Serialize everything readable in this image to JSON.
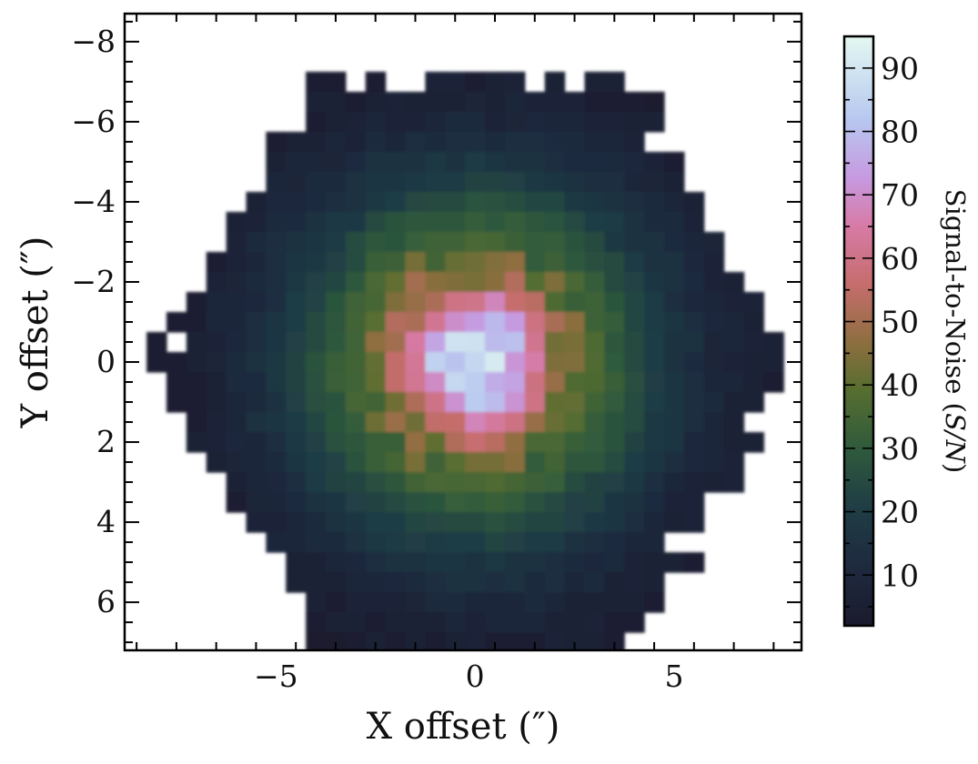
{
  "chart_data": {
    "type": "heatmap",
    "xlabel": "X offset (″)",
    "ylabel": "Y offset (″)",
    "xlim": [
      -8.8,
      8.2
    ],
    "ylim": [
      7.2,
      -8.7
    ],
    "y_inverted": true,
    "x_ticks": [
      -5,
      0,
      5
    ],
    "x_tick_labels": [
      "−5",
      "0",
      "5"
    ],
    "y_ticks": [
      -8,
      -6,
      -4,
      -2,
      0,
      2,
      4,
      6
    ],
    "y_tick_labels": [
      "−8",
      "−6",
      "−4",
      "−2",
      "0",
      "2",
      "4",
      "6"
    ],
    "spaxel_size_arcsec": 1.0,
    "field_radius_arcsec": 8.0,
    "center": [
      0.0,
      0.0
    ],
    "peak_sn": 94,
    "min_sn": 2,
    "sn_profile_radius_arcsec": [
      0,
      1,
      2,
      3,
      4,
      5,
      6,
      7,
      8
    ],
    "sn_profile_values": [
      94,
      78,
      50,
      36,
      26,
      17,
      10,
      6,
      4
    ],
    "grid": false,
    "colorbar": {
      "label": "Signal-to-Noise (S/N)",
      "label_text": "Signal-to-Noise (",
      "label_italic": "S/N",
      "label_close": ")",
      "vmin": 2,
      "vmax": 95,
      "ticks": [
        10,
        20,
        30,
        40,
        50,
        60,
        70,
        80,
        90
      ],
      "tick_labels": [
        "10",
        "20",
        "30",
        "40",
        "50",
        "60",
        "70",
        "80",
        "90"
      ],
      "position": "right",
      "colormap": "cubehelix-like",
      "colormap_stops": [
        {
          "v": 0.0,
          "color": "#1b1a2e"
        },
        {
          "v": 0.1,
          "color": "#1e2a3e"
        },
        {
          "v": 0.2,
          "color": "#1f3d45"
        },
        {
          "v": 0.3,
          "color": "#2f5a3c"
        },
        {
          "v": 0.4,
          "color": "#566e30"
        },
        {
          "v": 0.48,
          "color": "#8d6e3f"
        },
        {
          "v": 0.58,
          "color": "#c66d6d"
        },
        {
          "v": 0.68,
          "color": "#d77ba7"
        },
        {
          "v": 0.76,
          "color": "#c69ae0"
        },
        {
          "v": 0.86,
          "color": "#b8c8f0"
        },
        {
          "v": 1.0,
          "color": "#e3f8f1"
        }
      ]
    }
  }
}
